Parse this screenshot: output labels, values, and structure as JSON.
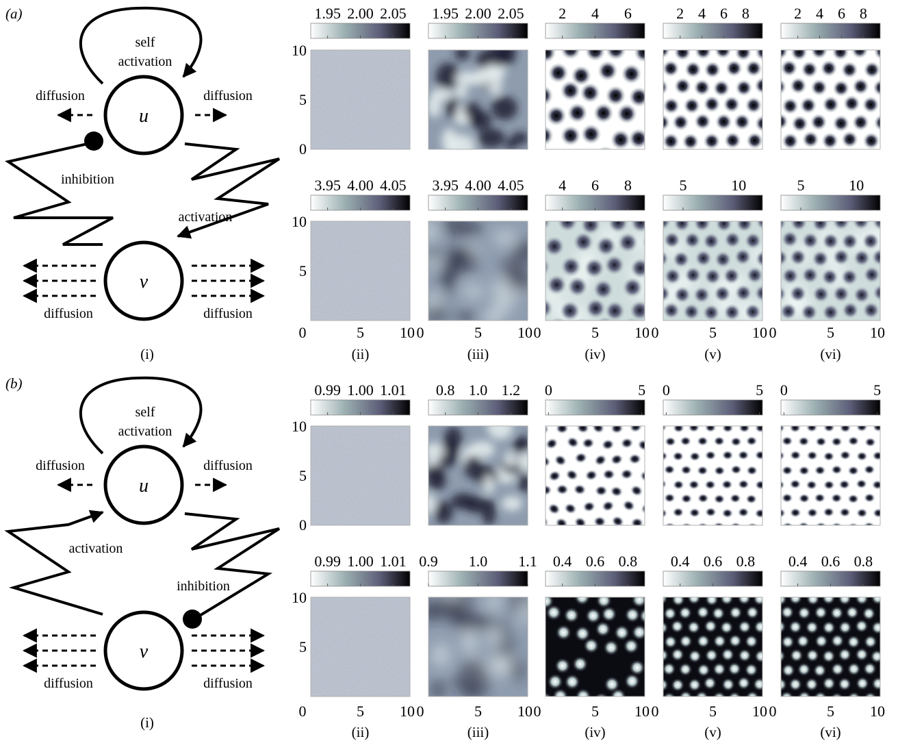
{
  "panels": [
    {
      "label": "(a)",
      "diagram": {
        "self_label_1": "self",
        "self_label_2": "activation",
        "u": "u",
        "v": "v",
        "diffusion_u_left": "diffusion",
        "diffusion_u_right": "diffusion",
        "diffusion_v_left": "diffusion",
        "diffusion_v_right": "diffusion",
        "link_to_u": "inhibition",
        "link_to_v": "activation",
        "caption": "(i)"
      },
      "rows": [
        {
          "colorbars": [
            {
              "ticks": [
                "1.95",
                "2.00",
                "2.05"
              ]
            },
            {
              "ticks": [
                "1.95",
                "2.00",
                "2.05"
              ]
            },
            {
              "ticks": [
                "2",
                "4",
                "6"
              ]
            },
            {
              "ticks": [
                "2",
                "4",
                "6",
                "8"
              ]
            },
            {
              "ticks": [
                "2",
                "4",
                "6",
                "8"
              ]
            }
          ]
        },
        {
          "colorbars": [
            {
              "ticks": [
                "3.95",
                "4.00",
                "4.05"
              ]
            },
            {
              "ticks": [
                "3.95",
                "4.00",
                "4.05"
              ]
            },
            {
              "ticks": [
                "4",
                "6",
                "8"
              ]
            },
            {
              "ticks": [
                "5",
                "10"
              ]
            },
            {
              "ticks": [
                "5",
                "10"
              ]
            }
          ]
        }
      ],
      "y_ticks_top": [
        "10",
        "5",
        "0"
      ],
      "y_ticks_bottom": [
        "10",
        "5"
      ]
    },
    {
      "label": "(b)",
      "diagram": {
        "self_label_1": "self",
        "self_label_2": "activation",
        "u": "u",
        "v": "v",
        "diffusion_u_left": "diffusion",
        "diffusion_u_right": "diffusion",
        "diffusion_v_left": "diffusion",
        "diffusion_v_right": "diffusion",
        "link_to_u": "activation",
        "link_to_v": "inhibition",
        "caption": "(i)"
      },
      "rows": [
        {
          "colorbars": [
            {
              "ticks": [
                "0.99",
                "1.00",
                "1.01"
              ]
            },
            {
              "ticks": [
                "0.8",
                "1.0",
                "1.2"
              ]
            },
            {
              "ticks": [
                "0",
                "5"
              ]
            },
            {
              "ticks": [
                "0",
                "5"
              ]
            },
            {
              "ticks": [
                "0",
                "5"
              ]
            }
          ]
        },
        {
          "colorbars": [
            {
              "ticks": [
                "0.99",
                "1.00",
                "1.01"
              ]
            },
            {
              "ticks": [
                "0.9",
                "1.0",
                "1.1"
              ]
            },
            {
              "ticks": [
                "0.4",
                "0.6",
                "0.8"
              ]
            },
            {
              "ticks": [
                "0.4",
                "0.6",
                "0.8"
              ]
            },
            {
              "ticks": [
                "0.4",
                "0.6",
                "0.8"
              ]
            }
          ]
        }
      ],
      "y_ticks_top": [
        "10",
        "5",
        "0"
      ],
      "y_ticks_bottom": [
        "10",
        "5"
      ]
    }
  ],
  "x_ticks": [
    "0",
    "5",
    "10"
  ],
  "column_captions": [
    "(ii)",
    "(iii)",
    "(iv)",
    "(v)",
    "(vi)"
  ],
  "colormap": [
    "#ffffff",
    "#9aaeb0",
    "#5c5d78",
    "#000000"
  ]
}
